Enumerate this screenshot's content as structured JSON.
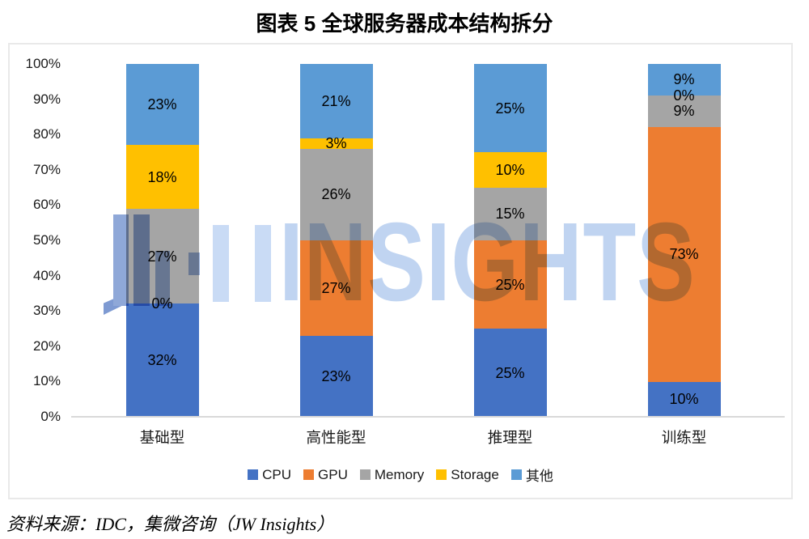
{
  "header": {
    "title": "图表 5 全球服务器成本结构拆分"
  },
  "footer": {
    "source": "资料来源：IDC，集微咨询（JW Insights）"
  },
  "watermark": {
    "text": "INSIGHTS",
    "color": "#c0d4f1"
  },
  "chart_data": {
    "type": "bar",
    "variant": "100-percent-stacked-column",
    "title": "图表 5 全球服务器成本结构拆分",
    "categories": [
      "基础型",
      "高性能型",
      "推理型",
      "训练型"
    ],
    "series": [
      {
        "name": "CPU",
        "color": "#4472C4",
        "values": [
          32,
          23,
          25,
          10
        ]
      },
      {
        "name": "GPU",
        "color": "#ED7D31",
        "values": [
          0,
          27,
          25,
          73
        ]
      },
      {
        "name": "Memory",
        "color": "#A5A5A5",
        "values": [
          27,
          26,
          15,
          9
        ]
      },
      {
        "name": "Storage",
        "color": "#FFC000",
        "values": [
          18,
          3,
          10,
          0
        ]
      },
      {
        "name": "其他",
        "color": "#5B9BD5",
        "values": [
          23,
          21,
          25,
          9
        ]
      }
    ],
    "data_label_suffix": "%",
    "y_axis": {
      "min": 0,
      "max": 100,
      "tick_labels": [
        "0%",
        "10%",
        "20%",
        "30%",
        "40%",
        "50%",
        "60%",
        "70%",
        "80%",
        "90%",
        "100%"
      ]
    },
    "legend_position": "bottom",
    "grid": false
  }
}
